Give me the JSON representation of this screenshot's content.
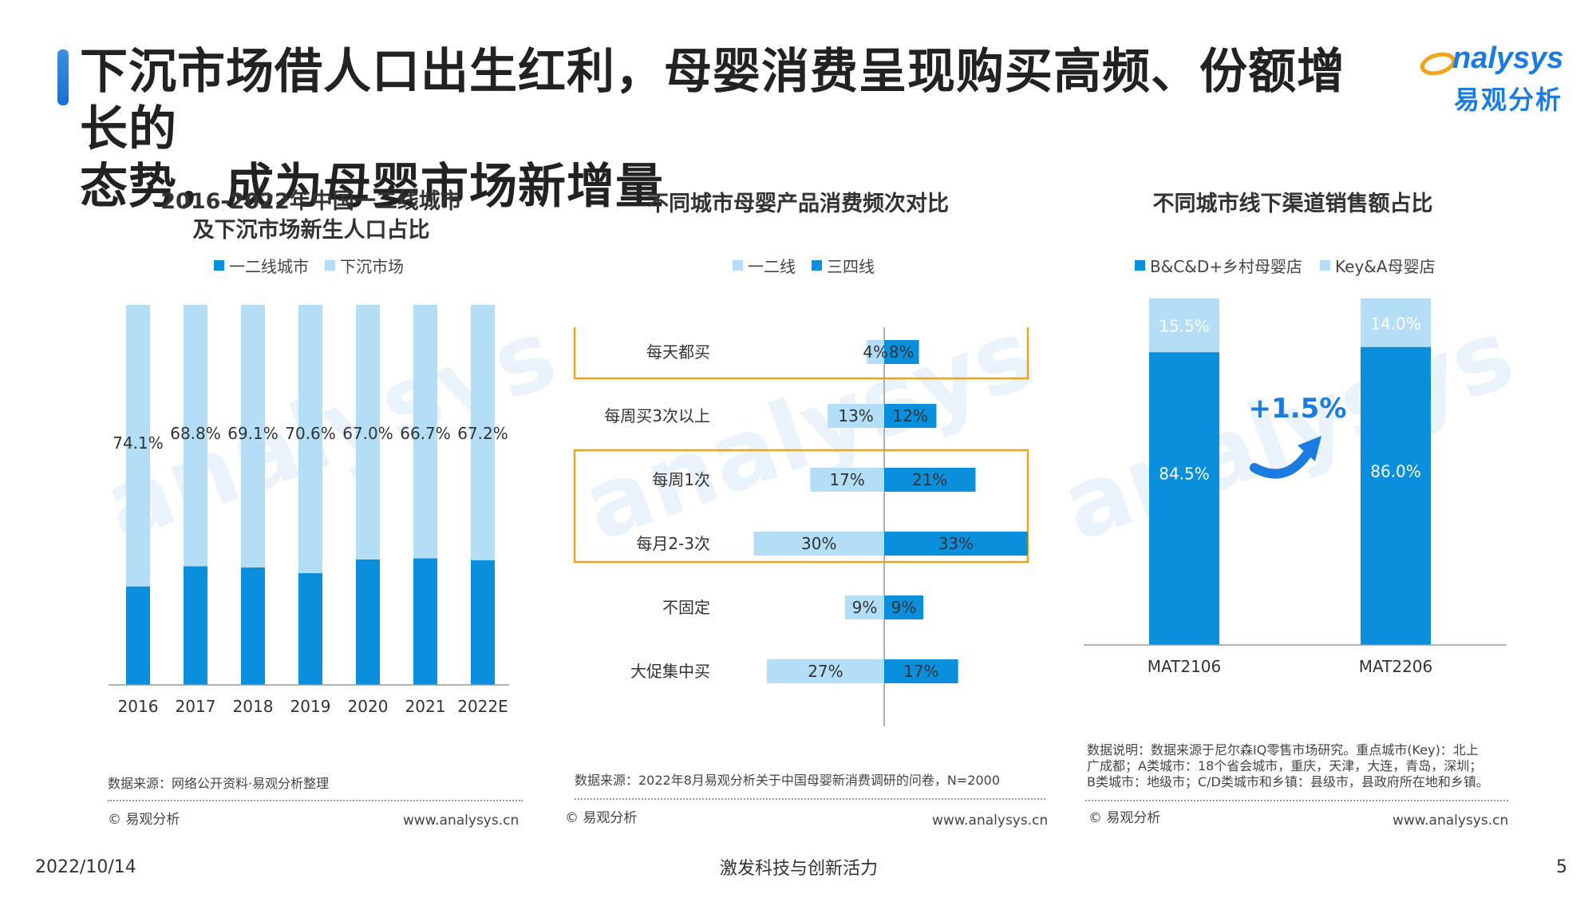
{
  "header": {
    "title_line1": "下沉市场借人口出生红利，母婴消费呈现购买高频、份额增长的",
    "title_line2": "态势，成为母婴市场新增量",
    "logo_en": "nalysys",
    "logo_cn": "易观分析"
  },
  "colors": {
    "dark": "#0a8fdc",
    "light": "#b3def6",
    "highlight": "#f0a41c",
    "accent": "#1a7be0"
  },
  "chart_data": [
    {
      "type": "bar",
      "stacked": true,
      "title": "2016-2022年中国一二线城市\n及下沉市场新生人口占比",
      "categories": [
        "2016",
        "2017",
        "2018",
        "2019",
        "2020",
        "2021",
        "2022E"
      ],
      "series": [
        {
          "name": "一二线城市",
          "values": [
            25.9,
            31.2,
            30.9,
            29.4,
            33.0,
            33.3,
            32.8
          ]
        },
        {
          "name": "下沉市场",
          "values": [
            74.1,
            68.8,
            69.1,
            70.6,
            67.0,
            66.7,
            67.2
          ]
        }
      ],
      "labels": [
        "74.1%",
        "68.8%",
        "69.1%",
        "70.6%",
        "67.0%",
        "66.7%",
        "67.2%"
      ],
      "ylim": [
        0,
        100
      ],
      "source": "数据来源：网络公开资料·易观分析整理"
    },
    {
      "type": "bar",
      "orientation": "horizontal-diverging",
      "title": "不同城市母婴产品消费频次对比",
      "categories": [
        "每天都买",
        "每周买3次以上",
        "每周1次",
        "每月2-3次",
        "不固定",
        "大促集中买"
      ],
      "series": [
        {
          "name": "一二线",
          "values": [
            4,
            13,
            17,
            30,
            9,
            27
          ]
        },
        {
          "name": "三四线",
          "values": [
            8,
            12,
            21,
            33,
            9,
            17
          ]
        }
      ],
      "highlighted": [
        "每天都买",
        "每周1次",
        "每月2-3次"
      ],
      "source": "数据来源：2022年8月易观分析关于中国母婴新消费调研的问卷，N=2000"
    },
    {
      "type": "bar",
      "stacked": true,
      "title": "不同城市线下渠道销售额占比",
      "categories": [
        "MAT2106",
        "MAT2206"
      ],
      "series": [
        {
          "name": "B&C&D+乡村母婴店",
          "values": [
            84.5,
            86.0
          ]
        },
        {
          "name": "Key&A母婴店",
          "values": [
            15.5,
            14.0
          ]
        }
      ],
      "ylim": [
        0,
        100
      ],
      "annotation": "+1.5%",
      "source_lines": [
        "数据说明：数据来源于尼尔森IQ零售市场研究。重点城市(Key)：北上",
        "广成都；A类城市：18个省会城市，重庆，天津，大连，青岛，深圳；",
        "B类城市：地级市；C/D类城市和乡镇：县级市，县政府所在地和乡镇。"
      ]
    }
  ],
  "panel_footer": {
    "copyright": "© 易观分析",
    "site": "www.analysys.cn"
  },
  "footer": {
    "date": "2022/10/14",
    "slogan": "激发科技与创新活力",
    "page": "5"
  },
  "watermark": {
    "en": "analysys",
    "cn": "易观分析"
  }
}
